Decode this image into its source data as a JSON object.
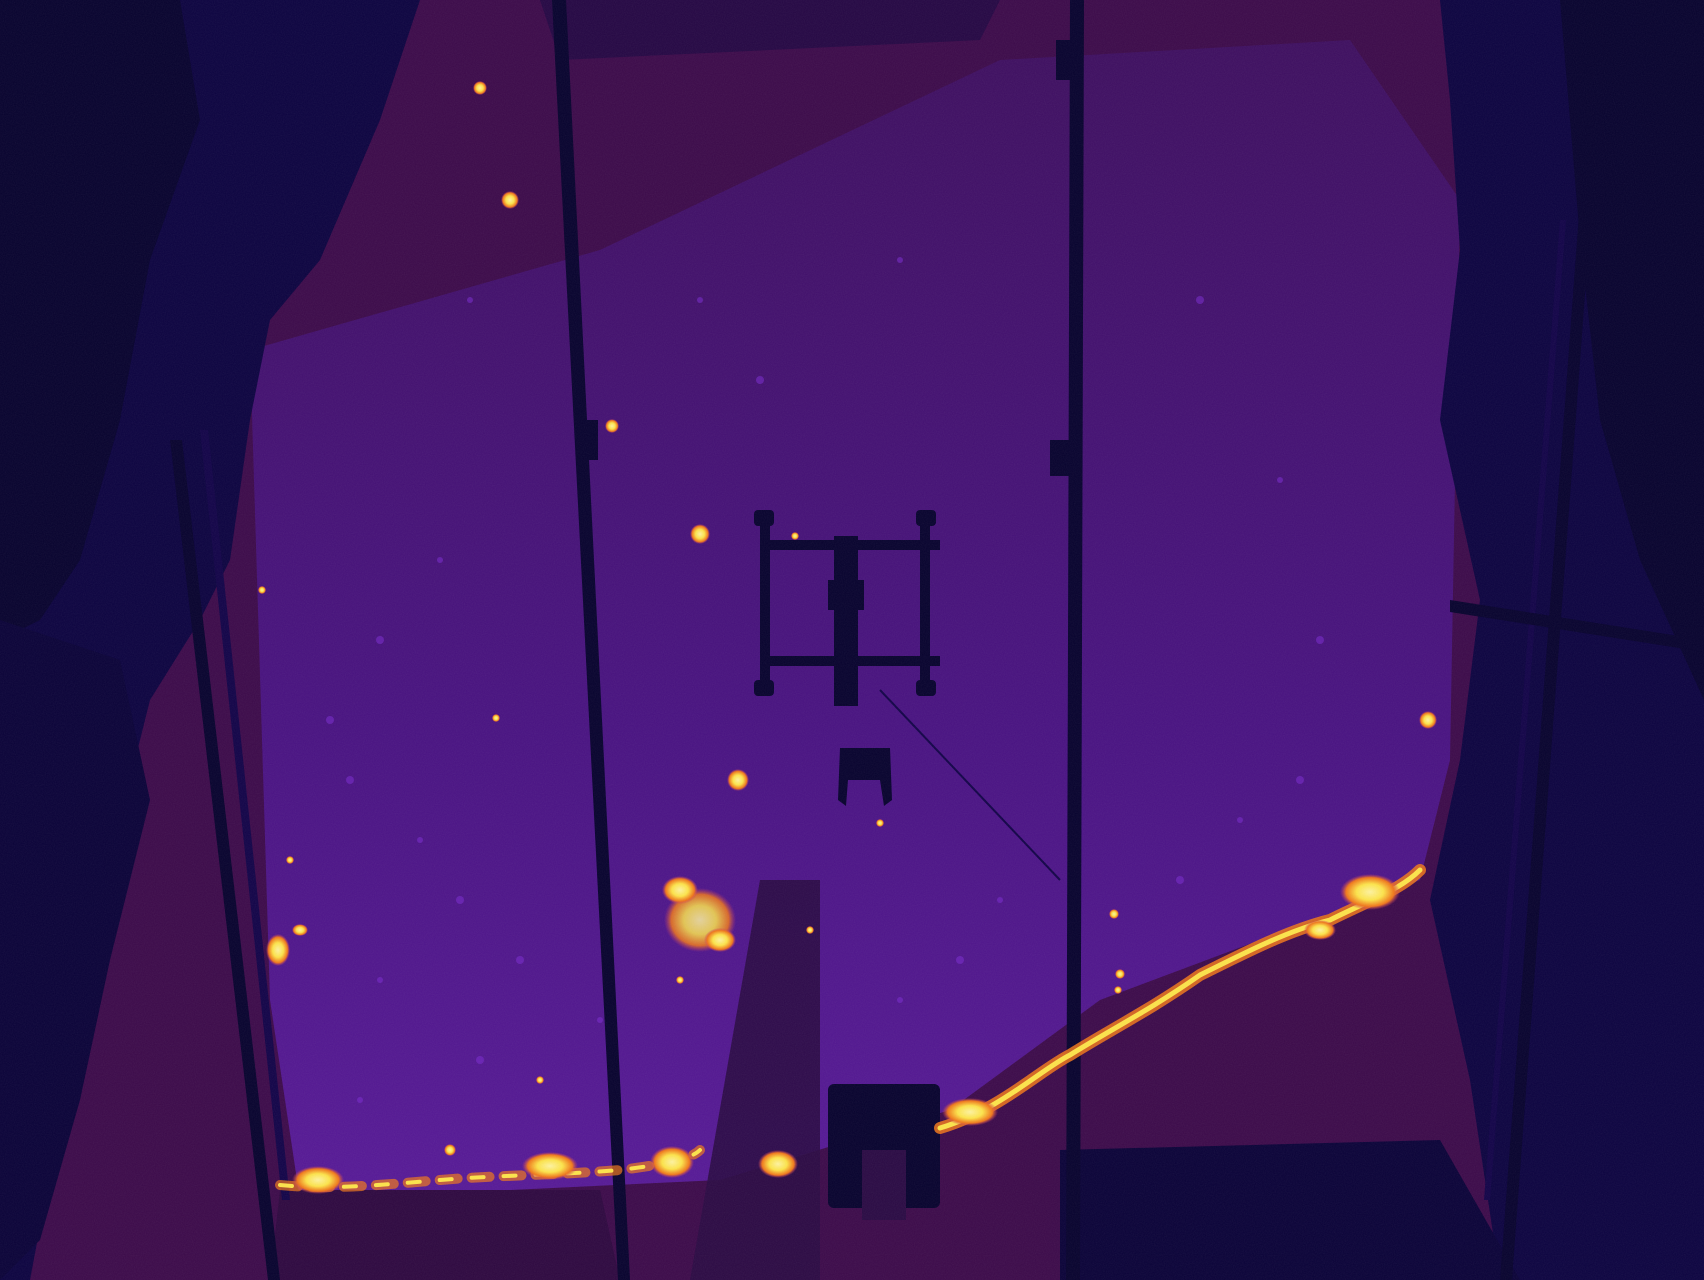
{
  "image": {
    "kind": "thermal-camera-frame",
    "palette": {
      "background": "#3c0a4a",
      "cold": "#0c0340",
      "mid": "#4e128e",
      "warm": "#8c2fc2",
      "hot": "#f0761a",
      "hottest": "#fde44a"
    },
    "elements": [
      "dark-left-foliage",
      "dark-right-foliage",
      "purple-ground-plane",
      "vertical-pole-left",
      "vertical-pole-right",
      "diagonal-rails",
      "drone-frame-silhouette",
      "drone-mast-silhouette",
      "hot-spot-lines"
    ]
  }
}
